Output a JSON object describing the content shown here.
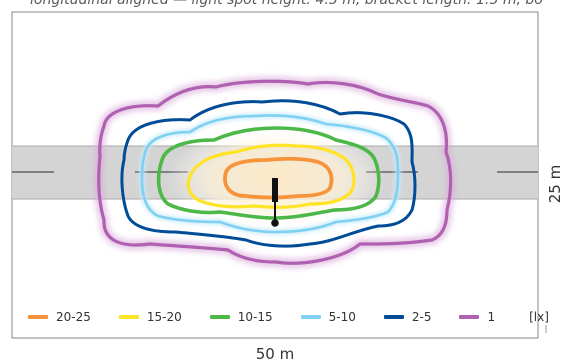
{
  "caption": "longitudinal aligned — light spot height: 4.5 m, bracket length: 1.5 m, bo",
  "dimensions": {
    "width_label": "50 m",
    "height_label": "25 m"
  },
  "legend": {
    "unit": "[lx]",
    "items": [
      {
        "label": "20-25",
        "color": "#f7943b"
      },
      {
        "label": "15-20",
        "color": "#ffe326"
      },
      {
        "label": "10-15",
        "color": "#4cb848"
      },
      {
        "label": "5-10",
        "color": "#7fd0f2"
      },
      {
        "label": "2-5",
        "color": "#004c97"
      },
      {
        "label": "1",
        "color": "#b060b0"
      }
    ]
  },
  "colors": {
    "road": "#d4d4d4",
    "road_marking": "#808080",
    "frame": "#8a8a8a",
    "luminaire": "#111111"
  }
}
